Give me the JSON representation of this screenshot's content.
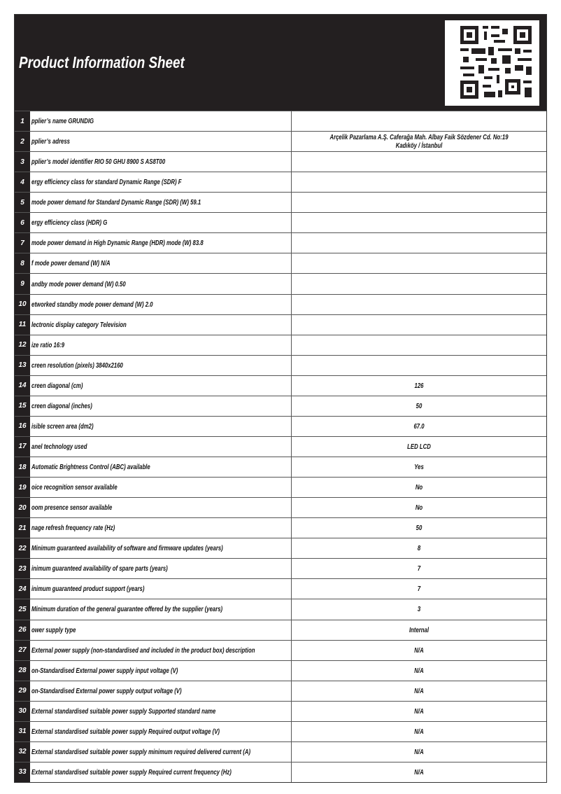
{
  "header": {
    "title": "Product Information Sheet"
  },
  "table": {
    "rows": [
      {
        "number": 1,
        "label": "pplier’s name  GRUNDIG"
      },
      {
        "number": 2,
        "label": "pplier’s adress",
        "value": "Arçelik Pazarlama A.Ş. Caferağa Mah. Albay Faik Sözdener Cd. No:19 Kadıköy / İstanbul"
      },
      {
        "number": 3,
        "label": "pplier’s model identifier RIO 50 GHU 8900 S AS8T00"
      },
      {
        "number": 4,
        "label": "ergy efficiency class for standard Dynamic Range (SDR) F"
      },
      {
        "number": 5,
        "label": "mode power demand for Standard Dynamic Range (SDR) (W) 59.1"
      },
      {
        "number": 6,
        "label": "ergy efficiency class (HDR) G"
      },
      {
        "number": 7,
        "label": "mode power demand in High Dynamic Range (HDR) mode  (W) 83.8"
      },
      {
        "number": 8,
        "label": "f mode power demand (W) N/A"
      },
      {
        "number": 9,
        "label": "andby mode power demand  (W) 0.50"
      },
      {
        "number": 10,
        "label": "etworked standby mode power demand (W) 2.0"
      },
      {
        "number": 11,
        "label": "lectronic display category Television"
      },
      {
        "number": 12,
        "label": "ize ratio 16:9"
      },
      {
        "number": 13,
        "label": "creen resolution (pixels) 3840x2160"
      },
      {
        "number": 14,
        "label": "creen diagonal (cm)",
        "value": "126"
      },
      {
        "number": 15,
        "label": "creen diagonal (inches)",
        "value": "50"
      },
      {
        "number": 16,
        "label": "isible screen area (dm2)",
        "value": "67.0"
      },
      {
        "number": 17,
        "label": "anel technology used",
        "value": "LED LCD"
      },
      {
        "number": 18,
        "label": "Automatic Brightness Control (ABC) available",
        "value": "Yes"
      },
      {
        "number": 19,
        "label": "oice recognition sensor available",
        "value": "No"
      },
      {
        "number": 20,
        "label": "oom presence sensor available",
        "value": "No"
      },
      {
        "number": 21,
        "label": "nage refresh frequency rate (Hz)",
        "value": "50"
      },
      {
        "number": 22,
        "label": "Minimum guaranteed availability of software and firmware updates (years)",
        "value": "8"
      },
      {
        "number": 23,
        "label": "inimum guaranteed availability of spare parts (years)",
        "value": "7"
      },
      {
        "number": 24,
        "label": "inimum guaranteed product support (years)",
        "value": "7"
      },
      {
        "number": 25,
        "label": "Minimum duration of the general guarantee offered by the supplier (years)",
        "value": "3"
      },
      {
        "number": 26,
        "label": "ower supply type",
        "value": "Internal"
      },
      {
        "number": 27,
        "label": "External power supply (non-standardised and included in the product box) description",
        "value": "N/A"
      },
      {
        "number": 28,
        "label": "on-Standardised External power supply input voltage (V)",
        "value": "N/A"
      },
      {
        "number": 29,
        "label": "on-Standardised External power supply output voltage (V)",
        "value": "N/A"
      },
      {
        "number": 30,
        "label": "External standardised suitable power supply Supported standard name",
        "value": "N/A"
      },
      {
        "number": 31,
        "label": "External standardised suitable power supply Required output voltage (V)",
        "value": "N/A"
      },
      {
        "number": 32,
        "label": "External standardised suitable  power supply minimum required delivered current  (A)",
        "value": "N/A"
      },
      {
        "number": 33,
        "label": "External standardised suitable power supply Required current frequency (Hz)",
        "value": "N/A"
      }
    ]
  }
}
